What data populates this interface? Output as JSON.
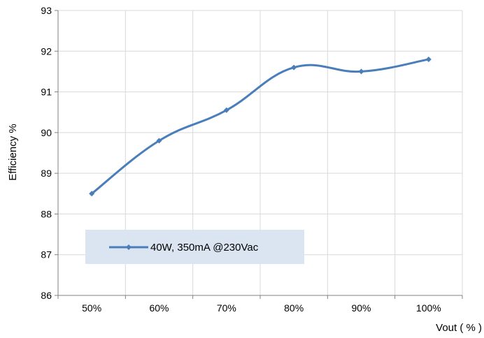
{
  "chart_data": {
    "type": "line",
    "categories": [
      "50%",
      "60%",
      "70%",
      "80%",
      "90%",
      "100%"
    ],
    "series": [
      {
        "name": "40W, 350mA @230Vac",
        "values": [
          88.5,
          89.8,
          90.55,
          91.6,
          91.5,
          91.8
        ]
      }
    ],
    "yticks": [
      "86",
      "87",
      "88",
      "89",
      "90",
      "91",
      "92",
      "93"
    ],
    "ylim": [
      86,
      93
    ],
    "xlabel": "Vout ( % )",
    "ylabel": "Efficiency %",
    "grid": true,
    "legend_position": "lower-left",
    "colors": {
      "series": "#4a7ebb",
      "grid": "#d9d9d9",
      "axis": "#808080",
      "legend_bg": "#dbe5f1"
    }
  }
}
